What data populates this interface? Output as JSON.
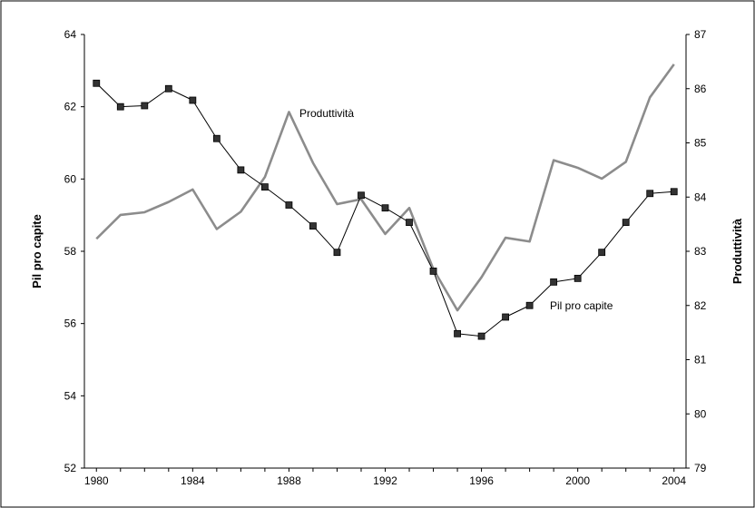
{
  "chart_data": {
    "type": "line",
    "x": [
      1980,
      1981,
      1982,
      1983,
      1984,
      1985,
      1986,
      1987,
      1988,
      1989,
      1990,
      1991,
      1992,
      1993,
      1994,
      1995,
      1996,
      1997,
      1998,
      1999,
      2000,
      2001,
      2002,
      2003,
      2004
    ],
    "x_ticks": [
      "1980",
      "1984",
      "1988",
      "1992",
      "1996",
      "2000",
      "2004"
    ],
    "xlim": [
      1979.5,
      2004.5
    ],
    "left_axis": {
      "label": "Pil pro capite",
      "ylim": [
        52,
        64
      ],
      "ticks": [
        "52",
        "54",
        "56",
        "58",
        "60",
        "62",
        "64"
      ]
    },
    "right_axis": {
      "label": "Produttività",
      "ylim": [
        79,
        87
      ],
      "ticks": [
        "79",
        "80",
        "81",
        "82",
        "83",
        "84",
        "85",
        "86",
        "87"
      ]
    },
    "series": [
      {
        "name": "Pil pro capite",
        "axis": "left",
        "color": "#000000",
        "marker": "square",
        "values": [
          62.65,
          62.0,
          62.03,
          62.5,
          62.18,
          61.12,
          60.25,
          59.78,
          59.28,
          58.7,
          57.97,
          59.55,
          59.2,
          58.8,
          57.45,
          55.72,
          55.65,
          56.18,
          56.5,
          57.15,
          57.25,
          57.97,
          58.8,
          59.6,
          59.65
        ]
      },
      {
        "name": "Produttività",
        "axis": "right",
        "color": "#8c8c8c",
        "marker": "none",
        "values": [
          83.23,
          83.67,
          83.72,
          83.91,
          84.14,
          83.41,
          83.73,
          84.37,
          85.57,
          84.63,
          83.87,
          83.96,
          83.32,
          83.8,
          82.67,
          81.91,
          82.52,
          83.25,
          83.18,
          84.68,
          84.54,
          84.34,
          84.65,
          85.84,
          86.45
        ]
      }
    ],
    "series_labels": [
      "Produttività",
      "Pil pro capite"
    ],
    "grid": false
  }
}
